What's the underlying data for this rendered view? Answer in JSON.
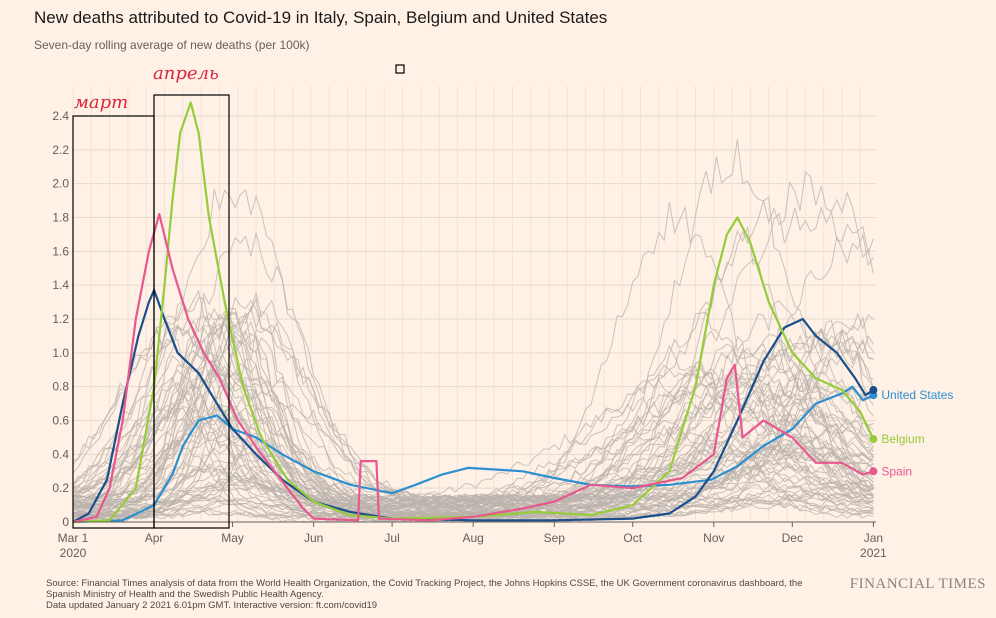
{
  "header": {
    "title": "New deaths attributed to Covid-19 in Italy, Spain, Belgium and United States",
    "subtitle": "Seven-day rolling average of new deaths (per 100k)"
  },
  "annotations": {
    "march_label": "март",
    "april_label": "апрель"
  },
  "footer": {
    "source": "Source: Financial Times analysis of data from the World Health Organization, the Covid Tracking Project, the Johns Hopkins CSSE, the UK Government coronavirus dashboard, the Spanish Ministry of Health and the Swedish Public Health Agency.",
    "updated": "Data updated January 2 2021 6.01pm GMT. Interactive version: ft.com/covid19",
    "logo": "FINANCIAL TIMES"
  },
  "chart_data": {
    "type": "line",
    "ylim": [
      0,
      2.4
    ],
    "y_ticks": [
      0,
      0.2,
      0.4,
      0.6,
      0.8,
      1.0,
      1.2,
      1.4,
      1.6,
      1.8,
      2.0,
      2.2,
      2.4
    ],
    "y_tick_labels": [
      "0",
      "0.2",
      "0.4",
      "0.6",
      "0.8",
      "1.0",
      "1.2",
      "1.4",
      "1.6",
      "1.8",
      "2.0",
      "2.2",
      "2.4"
    ],
    "x_ticks": [
      {
        "date": "2020-03-01",
        "label": "Mar 1",
        "sub": "2020"
      },
      {
        "date": "2020-04-01",
        "label": "Apr",
        "sub": ""
      },
      {
        "date": "2020-05-01",
        "label": "May",
        "sub": ""
      },
      {
        "date": "2020-06-01",
        "label": "Jun",
        "sub": ""
      },
      {
        "date": "2020-07-01",
        "label": "Jul",
        "sub": ""
      },
      {
        "date": "2020-08-01",
        "label": "Aug",
        "sub": ""
      },
      {
        "date": "2020-09-01",
        "label": "Sep",
        "sub": ""
      },
      {
        "date": "2020-10-01",
        "label": "Oct",
        "sub": ""
      },
      {
        "date": "2020-11-01",
        "label": "Nov",
        "sub": ""
      },
      {
        "date": "2020-12-01",
        "label": "Dec",
        "sub": ""
      },
      {
        "date": "2021-01-01",
        "label": "Jan",
        "sub": "2021"
      }
    ],
    "x_range": [
      "2020-03-01",
      "2021-01-02"
    ],
    "grid": true,
    "series": [
      {
        "name": "United States",
        "color": "#2b8fd0",
        "label_value": 0.75,
        "points": [
          [
            "2020-03-01",
            0
          ],
          [
            "2020-03-20",
            0.01
          ],
          [
            "2020-04-01",
            0.1
          ],
          [
            "2020-04-08",
            0.28
          ],
          [
            "2020-04-12",
            0.45
          ],
          [
            "2020-04-18",
            0.6
          ],
          [
            "2020-04-25",
            0.63
          ],
          [
            "2020-05-01",
            0.55
          ],
          [
            "2020-05-10",
            0.5
          ],
          [
            "2020-05-20",
            0.4
          ],
          [
            "2020-06-01",
            0.3
          ],
          [
            "2020-06-15",
            0.22
          ],
          [
            "2020-07-01",
            0.17
          ],
          [
            "2020-07-10",
            0.22
          ],
          [
            "2020-07-20",
            0.28
          ],
          [
            "2020-07-30",
            0.32
          ],
          [
            "2020-08-10",
            0.31
          ],
          [
            "2020-08-20",
            0.3
          ],
          [
            "2020-09-01",
            0.26
          ],
          [
            "2020-09-15",
            0.22
          ],
          [
            "2020-10-01",
            0.21
          ],
          [
            "2020-10-15",
            0.22
          ],
          [
            "2020-10-31",
            0.25
          ],
          [
            "2020-11-10",
            0.33
          ],
          [
            "2020-11-20",
            0.45
          ],
          [
            "2020-12-01",
            0.55
          ],
          [
            "2020-12-10",
            0.7
          ],
          [
            "2020-12-20",
            0.76
          ],
          [
            "2020-12-24",
            0.8
          ],
          [
            "2020-12-28",
            0.72
          ],
          [
            "2021-01-01",
            0.75
          ]
        ]
      },
      {
        "name": "Italy",
        "color": "#1b4f8c",
        "label_value": 0.78,
        "points": [
          [
            "2020-03-01",
            0
          ],
          [
            "2020-03-07",
            0.05
          ],
          [
            "2020-03-14",
            0.25
          ],
          [
            "2020-03-20",
            0.7
          ],
          [
            "2020-03-26",
            1.1
          ],
          [
            "2020-03-30",
            1.3
          ],
          [
            "2020-04-01",
            1.37
          ],
          [
            "2020-04-05",
            1.2
          ],
          [
            "2020-04-10",
            1.0
          ],
          [
            "2020-04-18",
            0.88
          ],
          [
            "2020-04-25",
            0.7
          ],
          [
            "2020-05-01",
            0.55
          ],
          [
            "2020-05-10",
            0.4
          ],
          [
            "2020-05-20",
            0.25
          ],
          [
            "2020-06-01",
            0.12
          ],
          [
            "2020-06-15",
            0.06
          ],
          [
            "2020-07-01",
            0.02
          ],
          [
            "2020-08-01",
            0.01
          ],
          [
            "2020-09-01",
            0.01
          ],
          [
            "2020-10-01",
            0.02
          ],
          [
            "2020-10-15",
            0.05
          ],
          [
            "2020-10-25",
            0.15
          ],
          [
            "2020-11-01",
            0.3
          ],
          [
            "2020-11-10",
            0.6
          ],
          [
            "2020-11-20",
            0.95
          ],
          [
            "2020-11-28",
            1.15
          ],
          [
            "2020-12-05",
            1.2
          ],
          [
            "2020-12-10",
            1.1
          ],
          [
            "2020-12-18",
            1.0
          ],
          [
            "2020-12-25",
            0.85
          ],
          [
            "2020-12-29",
            0.75
          ],
          [
            "2021-01-01",
            0.78
          ]
        ]
      },
      {
        "name": "Belgium",
        "color": "#96cc39",
        "label_value": 0.49,
        "points": [
          [
            "2020-03-01",
            0
          ],
          [
            "2020-03-15",
            0.01
          ],
          [
            "2020-03-25",
            0.2
          ],
          [
            "2020-04-01",
            0.8
          ],
          [
            "2020-04-05",
            1.4
          ],
          [
            "2020-04-08",
            1.9
          ],
          [
            "2020-04-11",
            2.3
          ],
          [
            "2020-04-15",
            2.48
          ],
          [
            "2020-04-18",
            2.3
          ],
          [
            "2020-04-22",
            1.8
          ],
          [
            "2020-04-28",
            1.3
          ],
          [
            "2020-05-05",
            0.8
          ],
          [
            "2020-05-12",
            0.5
          ],
          [
            "2020-05-22",
            0.25
          ],
          [
            "2020-06-01",
            0.12
          ],
          [
            "2020-06-15",
            0.04
          ],
          [
            "2020-07-01",
            0.02
          ],
          [
            "2020-08-01",
            0.03
          ],
          [
            "2020-08-25",
            0.06
          ],
          [
            "2020-09-15",
            0.04
          ],
          [
            "2020-10-01",
            0.1
          ],
          [
            "2020-10-15",
            0.3
          ],
          [
            "2020-10-25",
            0.8
          ],
          [
            "2020-11-01",
            1.4
          ],
          [
            "2020-11-06",
            1.7
          ],
          [
            "2020-11-10",
            1.8
          ],
          [
            "2020-11-15",
            1.65
          ],
          [
            "2020-11-22",
            1.3
          ],
          [
            "2020-12-01",
            1.0
          ],
          [
            "2020-12-10",
            0.85
          ],
          [
            "2020-12-20",
            0.78
          ],
          [
            "2020-12-27",
            0.65
          ],
          [
            "2021-01-01",
            0.49
          ]
        ]
      },
      {
        "name": "Spain",
        "color": "#e8588e",
        "label_value": 0.3,
        "points": [
          [
            "2020-03-01",
            0
          ],
          [
            "2020-03-10",
            0.03
          ],
          [
            "2020-03-15",
            0.2
          ],
          [
            "2020-03-20",
            0.6
          ],
          [
            "2020-03-25",
            1.2
          ],
          [
            "2020-03-30",
            1.6
          ],
          [
            "2020-04-03",
            1.82
          ],
          [
            "2020-04-08",
            1.5
          ],
          [
            "2020-04-14",
            1.2
          ],
          [
            "2020-04-20",
            1.0
          ],
          [
            "2020-04-26",
            0.85
          ],
          [
            "2020-05-03",
            0.6
          ],
          [
            "2020-05-12",
            0.4
          ],
          [
            "2020-05-22",
            0.2
          ],
          [
            "2020-05-28",
            0.08
          ],
          [
            "2020-06-01",
            0.02
          ],
          [
            "2020-06-18",
            0.01
          ],
          [
            "2020-06-19",
            0.36
          ],
          [
            "2020-06-25",
            0.36
          ],
          [
            "2020-06-26",
            0.02
          ],
          [
            "2020-07-15",
            0.01
          ],
          [
            "2020-08-01",
            0.03
          ],
          [
            "2020-08-20",
            0.08
          ],
          [
            "2020-09-01",
            0.12
          ],
          [
            "2020-09-15",
            0.22
          ],
          [
            "2020-10-01",
            0.2
          ],
          [
            "2020-10-20",
            0.26
          ],
          [
            "2020-11-01",
            0.4
          ],
          [
            "2020-11-06",
            0.85
          ],
          [
            "2020-11-09",
            0.93
          ],
          [
            "2020-11-12",
            0.5
          ],
          [
            "2020-11-20",
            0.6
          ],
          [
            "2020-12-01",
            0.5
          ],
          [
            "2020-12-10",
            0.35
          ],
          [
            "2020-12-20",
            0.35
          ],
          [
            "2020-12-28",
            0.28
          ],
          [
            "2021-01-01",
            0.3
          ]
        ]
      }
    ]
  }
}
